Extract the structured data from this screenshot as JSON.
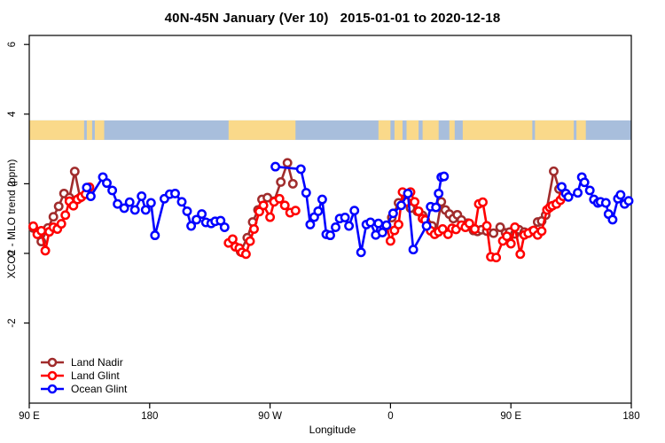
{
  "title": "40N-45N January (Ver 10)   2015-01-01 to 2020-12-18",
  "axes": {
    "x_label": "Longitude",
    "y_label": "XCO2 - MLO trend (ppm)",
    "x_ticks": [
      {
        "lon": 90,
        "label": "90 E"
      },
      {
        "lon": 180,
        "label": "180"
      },
      {
        "lon": 270,
        "label": "90 W"
      },
      {
        "lon": 360,
        "label": "0"
      },
      {
        "lon": 450,
        "label": "90 E"
      },
      {
        "lon": 540,
        "label": "180"
      }
    ],
    "y_ticks": [
      {
        "value": -2,
        "label": "-2"
      },
      {
        "value": 0,
        "label": "0"
      },
      {
        "value": 2,
        "label": "2"
      },
      {
        "value": 4,
        "label": "4"
      },
      {
        "value": 6,
        "label": "6"
      }
    ]
  },
  "legend": {
    "items": [
      {
        "label": "Land Nadir",
        "color": "#A02C2C"
      },
      {
        "label": "Land Glint",
        "color": "#FF0000"
      },
      {
        "label": "Ocean Glint",
        "color": "#0000FF"
      }
    ]
  },
  "chart_data": {
    "type": "line",
    "title": "40N-45N January (Ver 10)   2015-01-01 to 2020-12-18",
    "xlabel": "Longitude",
    "ylabel": "XCO2 - MLO trend (ppm)",
    "x_axis_note": "longitude unwrapped, degrees 90E eastward to 180 (90=90E, 180=180, 270=90W, 360=0, 450=90E, 540=180)",
    "xlim": [
      90,
      540
    ],
    "ylim": [
      -4.3,
      6.3
    ],
    "grid": false,
    "legend_position": "bottom-left",
    "map_band": {
      "description": "40N-45N land/ocean strip drawn across plot",
      "value_top": 3.82,
      "value_bottom": 3.26,
      "ocean_color": "#A8BEDC",
      "land_color": "#FAD98A",
      "land_segments": [
        [
          90,
          131
        ],
        [
          133,
          137
        ],
        [
          139,
          146
        ],
        [
          239,
          289
        ],
        [
          351,
          360
        ],
        [
          363,
          369
        ],
        [
          372,
          381
        ],
        [
          384,
          396
        ],
        [
          404,
          408
        ],
        [
          414,
          466
        ],
        [
          468,
          497
        ],
        [
          499,
          506
        ]
      ]
    },
    "series": [
      {
        "name": "Land Nadir",
        "color": "#A02C2C",
        "marker": "open-circle",
        "segments": [
          [
            [
              93,
              0.73
            ],
            [
              99,
              0.34
            ],
            [
              104,
              0.73
            ],
            [
              108,
              1.05
            ],
            [
              112,
              1.35
            ],
            [
              116,
              1.72
            ],
            [
              120,
              1.6
            ],
            [
              124,
              2.35
            ],
            [
              128,
              1.6
            ]
          ],
          [
            [
              248,
              0.05
            ],
            [
              253,
              0.45
            ],
            [
              257,
              0.9
            ],
            [
              261,
              1.25
            ],
            [
              264,
              1.55
            ],
            [
              268,
              1.6
            ],
            [
              273,
              1.5
            ],
            [
              278,
              2.05
            ],
            [
              283,
              2.6
            ],
            [
              287,
              2.0
            ]
          ],
          [
            [
              361,
              1.03
            ],
            [
              366,
              1.45
            ],
            [
              371,
              1.5
            ],
            [
              375,
              1.3
            ],
            [
              380,
              1.21
            ],
            [
              384,
              1.09
            ],
            [
              388,
              0.83
            ],
            [
              391,
              0.79
            ],
            [
              394,
              0.58
            ],
            [
              398,
              1.48
            ],
            [
              401,
              1.25
            ],
            [
              404,
              1.13
            ],
            [
              407,
              1.0
            ],
            [
              410,
              1.11
            ],
            [
              413,
              0.96
            ],
            [
              418,
              0.87
            ],
            [
              422,
              0.66
            ],
            [
              425,
              0.63
            ],
            [
              428,
              0.68
            ],
            [
              432,
              0.64
            ],
            [
              437,
              0.58
            ],
            [
              442,
              0.75
            ],
            [
              446,
              0.59
            ],
            [
              449,
              0.61
            ],
            [
              453,
              0.56
            ],
            [
              456,
              0.68
            ],
            [
              460,
              0.61
            ],
            [
              463,
              0.58
            ],
            [
              466,
              0.64
            ],
            [
              470,
              0.9
            ],
            [
              473,
              0.93
            ],
            [
              476,
              1.1
            ],
            [
              482,
              2.36
            ],
            [
              486,
              1.85
            ]
          ]
        ]
      },
      {
        "name": "Land Glint",
        "color": "#FF0000",
        "marker": "open-circle",
        "segments": [
          [
            [
              93,
              0.78
            ],
            [
              96,
              0.55
            ],
            [
              99,
              0.65
            ],
            [
              102,
              0.08
            ],
            [
              105,
              0.62
            ],
            [
              108,
              0.75
            ],
            [
              111,
              0.7
            ],
            [
              114,
              0.85
            ],
            [
              117,
              1.1
            ],
            [
              120,
              1.5
            ],
            [
              123,
              1.37
            ],
            [
              126,
              1.55
            ],
            [
              129,
              1.62
            ],
            [
              132,
              1.7
            ],
            [
              135,
              1.9
            ]
          ],
          [
            [
              239,
              0.3
            ],
            [
              242,
              0.41
            ],
            [
              244,
              0.19
            ],
            [
              247,
              0.15
            ],
            [
              249,
              0.03
            ],
            [
              252,
              -0.02
            ],
            [
              255,
              0.35
            ],
            [
              258,
              0.7
            ],
            [
              262,
              1.2
            ],
            [
              265,
              1.38
            ],
            [
              270,
              1.04
            ],
            [
              273,
              1.48
            ],
            [
              277,
              1.57
            ],
            [
              281,
              1.38
            ],
            [
              285,
              1.17
            ],
            [
              289,
              1.23
            ]
          ],
          [
            [
              357,
              0.79
            ],
            [
              360,
              0.36
            ],
            [
              363,
              0.66
            ],
            [
              366,
              0.83
            ],
            [
              369,
              1.76
            ],
            [
              372,
              1.48
            ],
            [
              375,
              1.76
            ],
            [
              378,
              1.48
            ],
            [
              381,
              1.21
            ],
            [
              384,
              1.0
            ],
            [
              386,
              0.96
            ],
            [
              390,
              0.65
            ],
            [
              393,
              0.55
            ],
            [
              396,
              0.62
            ],
            [
              399,
              0.7
            ],
            [
              403,
              0.55
            ],
            [
              406,
              0.72
            ],
            [
              409,
              0.69
            ],
            [
              413,
              0.81
            ],
            [
              416,
              0.75
            ],
            [
              419,
              0.86
            ],
            [
              423,
              0.7
            ],
            [
              426,
              1.42
            ],
            [
              429,
              1.47
            ],
            [
              432,
              0.79
            ],
            [
              435,
              -0.1
            ],
            [
              439,
              -0.12
            ],
            [
              444,
              0.36
            ],
            [
              447,
              0.49
            ],
            [
              450,
              0.28
            ],
            [
              453,
              0.75
            ],
            [
              457,
              -0.02
            ],
            [
              460,
              0.53
            ],
            [
              463,
              0.58
            ],
            [
              467,
              0.66
            ],
            [
              470,
              0.53
            ],
            [
              473,
              0.64
            ],
            [
              477,
              1.25
            ],
            [
              479,
              1.32
            ],
            [
              481,
              1.37
            ],
            [
              484,
              1.42
            ],
            [
              487,
              1.53
            ],
            [
              489,
              1.64
            ]
          ]
        ]
      },
      {
        "name": "Ocean Glint",
        "color": "#0000FF",
        "marker": "open-circle",
        "segments": [
          [
            [
              133,
              1.89
            ],
            [
              136,
              1.64
            ],
            [
              145,
              2.19
            ],
            [
              148,
              2.02
            ],
            [
              152,
              1.81
            ],
            [
              156,
              1.42
            ],
            [
              161,
              1.3
            ],
            [
              165,
              1.47
            ],
            [
              169,
              1.25
            ],
            [
              174,
              1.64
            ],
            [
              177,
              1.25
            ],
            [
              181,
              1.45
            ],
            [
              184,
              0.52
            ],
            [
              191,
              1.57
            ],
            [
              195,
              1.7
            ],
            [
              199,
              1.72
            ],
            [
              204,
              1.48
            ],
            [
              208,
              1.21
            ],
            [
              211,
              0.79
            ],
            [
              215,
              0.97
            ],
            [
              219,
              1.13
            ],
            [
              222,
              0.89
            ],
            [
              226,
              0.86
            ],
            [
              229,
              0.92
            ],
            [
              233,
              0.94
            ],
            [
              236,
              0.75
            ]
          ],
          [
            [
              274,
              2.49
            ],
            [
              293,
              2.42
            ],
            [
              297,
              1.74
            ],
            [
              300,
              0.83
            ],
            [
              303,
              1.04
            ],
            [
              306,
              1.21
            ],
            [
              309,
              1.55
            ],
            [
              312,
              0.55
            ],
            [
              315,
              0.52
            ],
            [
              319,
              0.75
            ],
            [
              322,
              1.0
            ],
            [
              326,
              1.03
            ],
            [
              329,
              0.79
            ],
            [
              333,
              1.23
            ],
            [
              338,
              0.03
            ],
            [
              342,
              0.83
            ],
            [
              345,
              0.89
            ],
            [
              349,
              0.53
            ],
            [
              351,
              0.86
            ],
            [
              354,
              0.6
            ],
            [
              357,
              0.81
            ],
            [
              362,
              1.15
            ],
            [
              368,
              1.38
            ],
            [
              373,
              1.72
            ],
            [
              377,
              0.11
            ],
            [
              387,
              0.79
            ],
            [
              390,
              1.34
            ],
            [
              394,
              1.32
            ],
            [
              396,
              1.72
            ],
            [
              398,
              2.19
            ],
            [
              400,
              2.21
            ]
          ],
          [
            [
              488,
              1.91
            ],
            [
              491,
              1.72
            ],
            [
              493,
              1.62
            ],
            [
              500,
              1.74
            ],
            [
              503,
              2.19
            ],
            [
              505,
              2.04
            ],
            [
              509,
              1.81
            ],
            [
              512,
              1.55
            ],
            [
              515,
              1.45
            ],
            [
              517,
              1.48
            ],
            [
              521,
              1.45
            ],
            [
              523,
              1.13
            ],
            [
              526,
              0.97
            ],
            [
              530,
              1.57
            ],
            [
              532,
              1.68
            ],
            [
              535,
              1.42
            ],
            [
              538,
              1.51
            ]
          ]
        ]
      }
    ]
  }
}
